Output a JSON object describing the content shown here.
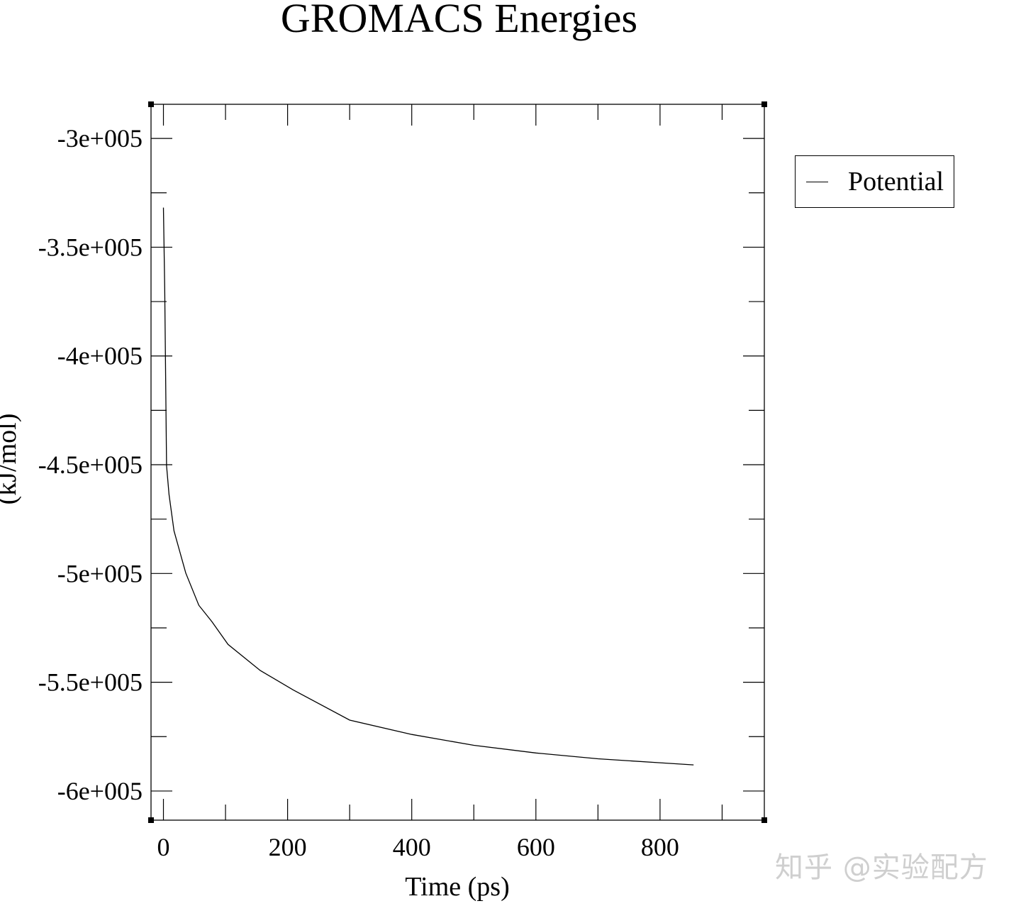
{
  "chart_data": {
    "type": "line",
    "title": "GROMACS Energies",
    "xlabel": "Time (ps)",
    "ylabel": "(kJ/mol)",
    "xlim": [
      -20,
      968
    ],
    "ylim": [
      -613400,
      -284300
    ],
    "xticks": [
      0,
      200,
      400,
      600,
      800
    ],
    "xtick_labels": [
      "0",
      "200",
      "400",
      "600",
      "800"
    ],
    "yticks": [
      -300000,
      -350000,
      -400000,
      -450000,
      -500000,
      -550000,
      -600000
    ],
    "ytick_labels": [
      "-3e+005",
      "-3.5e+005",
      "-4e+005",
      "-4.5e+005",
      "-5e+005",
      "-5.5e+005",
      "-6e+005"
    ],
    "grid": false,
    "legend": "top-right, outside plot",
    "series": [
      {
        "name": "Potential",
        "color": "#000000",
        "x": [
          0,
          2,
          5,
          9,
          17,
          36,
          57,
          78,
          104,
          156,
          209,
          300,
          400,
          500,
          600,
          700,
          800,
          854
        ],
        "y": [
          -331800,
          -368500,
          -450400,
          -463700,
          -480400,
          -499800,
          -514600,
          -522100,
          -532600,
          -544600,
          -553500,
          -567400,
          -574000,
          -579000,
          -582500,
          -585200,
          -587000,
          -588000
        ]
      }
    ]
  },
  "watermark": "知乎 @实验配方"
}
